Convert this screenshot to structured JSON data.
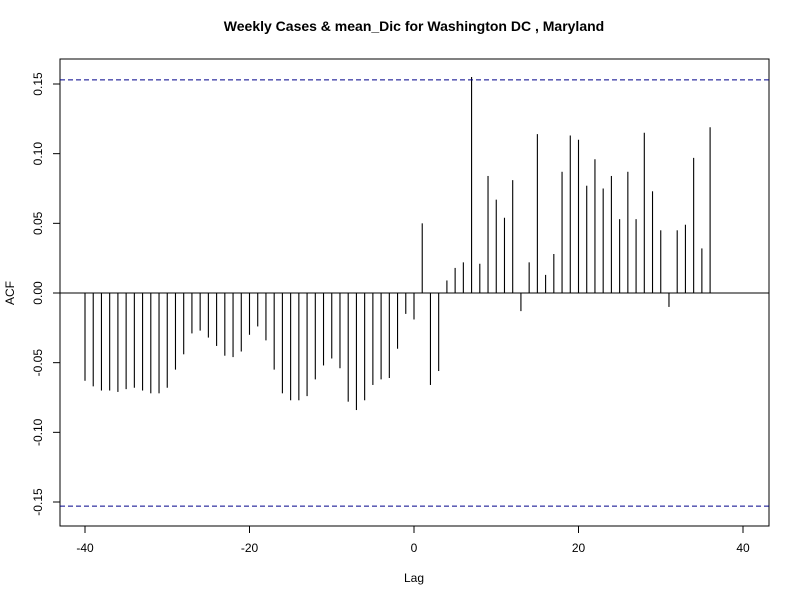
{
  "chart_data": {
    "type": "bar",
    "title": "Weekly Cases & mean_Dic for Washington DC , Maryland",
    "xlabel": "Lag",
    "ylabel": "ACF",
    "xlim": [
      -41.5,
      43.5
    ],
    "ylim": [
      -0.165,
      0.165
    ],
    "x_ticks": [
      -40,
      -20,
      0,
      20,
      40
    ],
    "x_tick_labels": [
      "-40",
      "-20",
      "0",
      "20",
      "40"
    ],
    "y_ticks": [
      -0.15,
      -0.1,
      -0.05,
      0.0,
      0.05,
      0.1,
      0.15
    ],
    "y_tick_labels": [
      "-0.15",
      "-0.10",
      "-0.05",
      "0.00",
      "0.05",
      "0.10",
      "0.15"
    ],
    "confidence_limits": [
      0.153,
      -0.153
    ],
    "colors": {
      "bars": "#000000",
      "confidence": "#00008b",
      "zero_line": "#000000",
      "frame": "#000000"
    },
    "grid": false,
    "lags": [
      -40,
      -39,
      -38,
      -37,
      -36,
      -35,
      -34,
      -33,
      -32,
      -31,
      -30,
      -29,
      -28,
      -27,
      -26,
      -25,
      -24,
      -23,
      -22,
      -21,
      -20,
      -19,
      -18,
      -17,
      -16,
      -15,
      -14,
      -13,
      -12,
      -11,
      -10,
      -9,
      -8,
      -7,
      -6,
      -5,
      -4,
      -3,
      -2,
      -1,
      0,
      1,
      2,
      3,
      4,
      5,
      6,
      7,
      8,
      9,
      10,
      11,
      12,
      13,
      14,
      15,
      16,
      17,
      18,
      19,
      20,
      21,
      22,
      23,
      24,
      25,
      26,
      27,
      28,
      29,
      30,
      31,
      32,
      33,
      34,
      35,
      36,
      37,
      38,
      39,
      40
    ],
    "values": [
      -0.063,
      -0.067,
      -0.07,
      -0.07,
      -0.071,
      -0.069,
      -0.068,
      -0.07,
      -0.072,
      -0.072,
      -0.068,
      -0.055,
      -0.044,
      -0.029,
      -0.027,
      -0.032,
      -0.038,
      -0.045,
      -0.046,
      -0.042,
      -0.03,
      -0.024,
      -0.034,
      -0.055,
      -0.072,
      -0.077,
      -0.077,
      -0.074,
      -0.062,
      -0.052,
      -0.047,
      -0.054,
      -0.078,
      -0.084,
      -0.077,
      -0.066,
      -0.062,
      -0.061,
      -0.04,
      -0.015,
      -0.019,
      0.05,
      -0.066,
      -0.056,
      0.009,
      0.018,
      0.022,
      0.155,
      0.021,
      0.084,
      0.067,
      0.054,
      0.081,
      -0.013,
      0.022,
      0.114,
      0.013,
      0.028,
      0.087,
      0.113,
      0.11,
      0.077,
      0.096,
      0.075,
      0.084,
      0.053,
      0.087,
      0.053,
      0.115,
      0.073,
      0.045,
      -0.01,
      0.045,
      0.049,
      0.097,
      0.032,
      0.119,
      0.0,
      0.0,
      0.0,
      0.0
    ]
  }
}
